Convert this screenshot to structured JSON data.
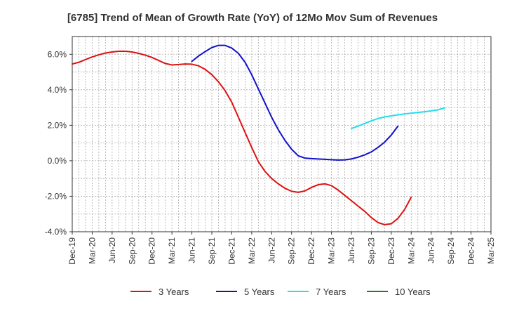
{
  "chart_data": {
    "type": "line",
    "title": "[6785]  Trend of Mean of Growth Rate (YoY) of 12Mo Mov Sum of Revenues",
    "xlabel": "",
    "ylabel": "",
    "ylim": [
      -4.0,
      7.0
    ],
    "yticks": [
      -4.0,
      -2.0,
      0.0,
      2.0,
      4.0,
      6.0
    ],
    "ytick_labels": [
      "-4.0%",
      "-2.0%",
      "0.0%",
      "2.0%",
      "4.0%",
      "6.0%"
    ],
    "x_range_month_index": [
      0,
      63
    ],
    "xtick_labels": [
      "Dec-19",
      "Mar-20",
      "Jun-20",
      "Sep-20",
      "Dec-20",
      "Mar-21",
      "Jun-21",
      "Sep-21",
      "Dec-21",
      "Mar-22",
      "Jun-22",
      "Sep-22",
      "Dec-22",
      "Mar-23",
      "Jun-23",
      "Sep-23",
      "Dec-23",
      "Mar-24",
      "Jun-24",
      "Sep-24",
      "Dec-24",
      "Mar-25"
    ],
    "grid": true,
    "legend_position": "bottom",
    "series": [
      {
        "name": "3 Years",
        "color": "#dd1111",
        "start_index": 0,
        "values": [
          5.45,
          5.55,
          5.7,
          5.85,
          5.97,
          6.07,
          6.13,
          6.17,
          6.17,
          6.13,
          6.05,
          5.95,
          5.82,
          5.65,
          5.48,
          5.4,
          5.42,
          5.45,
          5.44,
          5.35,
          5.15,
          4.85,
          4.45,
          3.95,
          3.3,
          2.45,
          1.6,
          0.75,
          -0.05,
          -0.6,
          -1.0,
          -1.3,
          -1.55,
          -1.72,
          -1.78,
          -1.7,
          -1.5,
          -1.35,
          -1.3,
          -1.4,
          -1.65,
          -1.95,
          -2.25,
          -2.55,
          -2.85,
          -3.2,
          -3.48,
          -3.6,
          -3.55,
          -3.25,
          -2.75,
          -2.05
        ]
      },
      {
        "name": "5 Years",
        "color": "#1111cc",
        "start_index": 18,
        "values": [
          5.6,
          5.9,
          6.15,
          6.38,
          6.5,
          6.5,
          6.35,
          6.05,
          5.55,
          4.85,
          4.05,
          3.25,
          2.45,
          1.75,
          1.15,
          0.65,
          0.28,
          0.15,
          0.12,
          0.1,
          0.08,
          0.06,
          0.04,
          0.05,
          0.1,
          0.2,
          0.33,
          0.5,
          0.75,
          1.05,
          1.45,
          1.95
        ]
      },
      {
        "name": "7 Years",
        "color": "#22ddee",
        "start_index": 42,
        "values": [
          1.82,
          1.95,
          2.1,
          2.25,
          2.38,
          2.47,
          2.53,
          2.59,
          2.64,
          2.68,
          2.72,
          2.76,
          2.81,
          2.87,
          2.97
        ]
      },
      {
        "name": "10 Years",
        "color": "#118811",
        "start_index": 0,
        "values": []
      }
    ]
  }
}
